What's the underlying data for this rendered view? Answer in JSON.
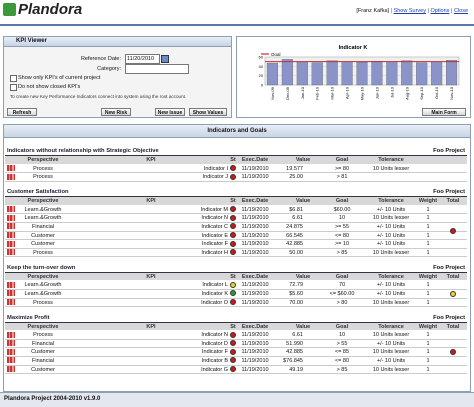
{
  "header": {
    "logo": "Plandora",
    "user": "[Franz Kafka]",
    "links": [
      "Show Survey",
      "Options",
      "Close"
    ]
  },
  "kpi_viewer": {
    "title": "KPI Viewer",
    "reference_date_label": "Reference Date:",
    "reference_date": "11/20/2010",
    "category_label": "Category:",
    "checkboxes": [
      "Show only KPI's of current project",
      "Do not show closed KPI's"
    ],
    "note": "To create new Key Performance Indicators connect into system using the root account.",
    "buttons": [
      "Refresh",
      "New Risk",
      "New Issue",
      "Show Values"
    ]
  },
  "chart": {
    "title": "Indicator K",
    "legend": "Goal",
    "goal": 50,
    "categories": [
      "Nov-09",
      "Dec-09",
      "Jan-10",
      "Feb-10",
      "Mar-10",
      "Apr-10",
      "May-10",
      "Jun-10",
      "Jul-10",
      "Aug-10",
      "Sep-10",
      "Oct-10",
      "Nov-10"
    ],
    "values": [
      47,
      55,
      50,
      48,
      52,
      50,
      49,
      51,
      50,
      52,
      48,
      50,
      53
    ],
    "ylim": [
      0,
      60
    ],
    "yticks": [
      0,
      20,
      40,
      60
    ],
    "bar_color": "#8a94c8",
    "goal_color": "#c03030",
    "button": "Main Form"
  },
  "indicators": {
    "title": "Indicators and Goals",
    "columns": [
      "Perspective",
      "KPI",
      "St",
      "Exec.Date",
      "Value",
      "Goal",
      "Tolerance",
      "Weight",
      "Total"
    ],
    "groups": [
      {
        "title": "Indicators without relationship with Strategic Objective",
        "project": "Foo Project",
        "status": [
          "red",
          "red"
        ],
        "rows": [
          [
            "Process",
            "Indicator I",
            "11/19/2010",
            "19.577",
            ">= 80",
            "10 Units lesser"
          ],
          [
            "Process",
            "Indicator J",
            "11/19/2010",
            "25.00",
            "> 81",
            null
          ]
        ]
      },
      {
        "title": "Customer Satisfaction",
        "project": "Foo Project",
        "total": "red",
        "status": [
          "red",
          "red",
          "red",
          "red",
          "red",
          "red"
        ],
        "rows": [
          [
            "Learn.&Growth",
            "Indicator M",
            "11/19/2010",
            "$6.81",
            "$60.00",
            "+/- 10 Units",
            "1"
          ],
          [
            "Learn.&Growth",
            "Indicator N",
            "11/19/2010",
            "6.61",
            "10",
            "10 Units lesser",
            "1"
          ],
          [
            "Financial",
            "Indicator C",
            "11/19/2010",
            "24.875",
            ">= 55",
            "+/- 10 Units",
            "1"
          ],
          [
            "Customer",
            "Indicator E",
            "11/19/2010",
            "66.545",
            "<= 80",
            "+/- 10 Units",
            "1"
          ],
          [
            "Customer",
            "Indicator F",
            "11/19/2010",
            "42.885",
            ">= 10",
            "+/- 10 Units",
            "1"
          ],
          [
            "Process",
            "Indicator H",
            "11/19/2010",
            "50.00",
            "> 85",
            "10 Units lesser",
            "1"
          ]
        ]
      },
      {
        "title": "Keep the turn-over down",
        "project": "Foo Project",
        "total": "yellow",
        "status": [
          "yellow",
          "green",
          "red"
        ],
        "rows": [
          [
            "Learn.&Growth",
            "Indicator L",
            "11/19/2010",
            "72.79",
            "70",
            "+/- 10 Units",
            "1"
          ],
          [
            "Learn.&Growth",
            "Indicator K",
            "11/19/2010",
            "$5.60",
            "<= $60.00",
            "+/- 10 Units",
            "1"
          ],
          [
            "Process",
            "Indicator O",
            "11/19/2010",
            "70.00",
            "> 80",
            "10 Units lesser",
            "1"
          ]
        ]
      },
      {
        "title": "Maximize Profit",
        "project": "Foo Project",
        "total": "red",
        "status": [
          "red",
          "red",
          "red",
          "red",
          "red"
        ],
        "rows": [
          [
            "Process",
            "Indicator N",
            "11/19/2010",
            "6.61",
            "10",
            "10 Units lesser",
            "1"
          ],
          [
            "Financial",
            "Indicator D",
            "11/19/2010",
            "51.990",
            "> 55",
            "+/- 10 Units",
            "1"
          ],
          [
            "Customer",
            "Indicator F",
            "11/19/2010",
            "42.885",
            "<= 85",
            "10 Units lesser",
            "1"
          ],
          [
            "Financial",
            "Indicator B",
            "11/19/2010",
            "$76.845",
            "<= 80",
            "+/- 10 Units",
            "1"
          ],
          [
            "Customer",
            "Indicator G",
            "11/19/2010",
            "49.19",
            "> 85",
            "10 Units lesser",
            "1"
          ]
        ]
      }
    ]
  },
  "footer": "Plandora Project 2004-2010 v1.9.0"
}
